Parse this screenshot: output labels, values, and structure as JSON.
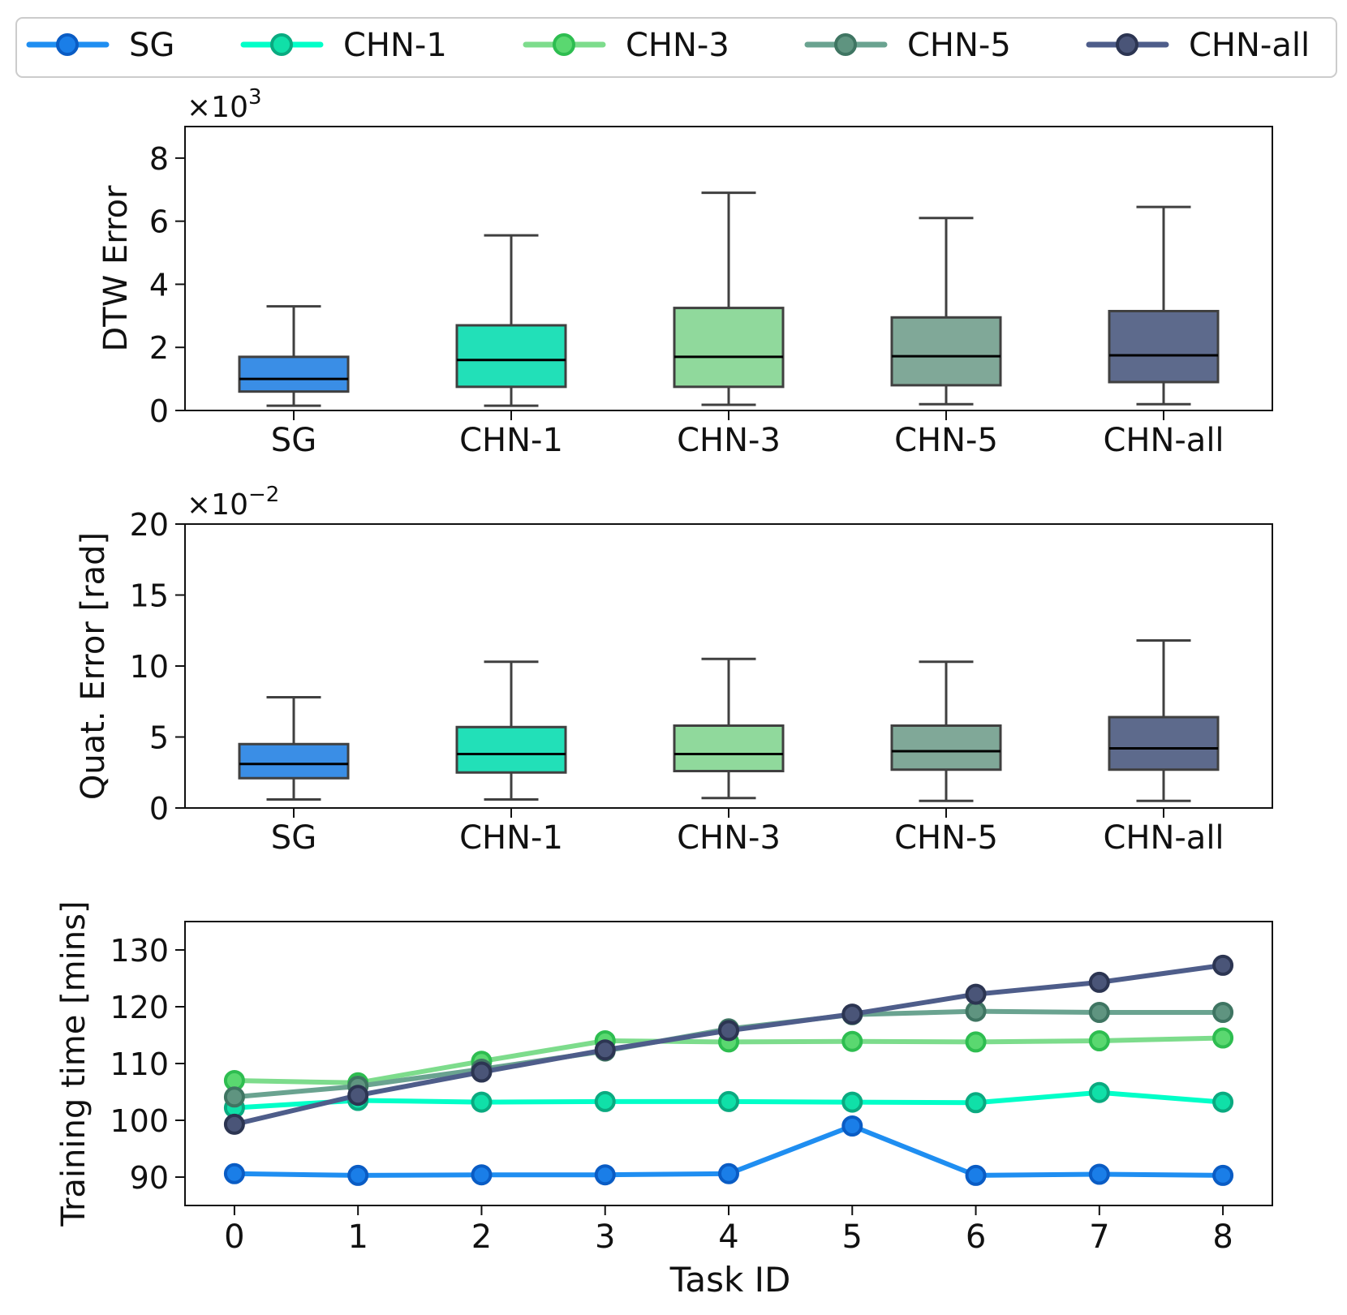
{
  "legend": {
    "entries": [
      {
        "label": "SG",
        "color": "#1f8ef1"
      },
      {
        "label": "CHN-1",
        "color": "#00ffc8"
      },
      {
        "label": "CHN-3",
        "color": "#7ddc8c"
      },
      {
        "label": "CHN-5",
        "color": "#6aa390"
      },
      {
        "label": "CHN-all",
        "color": "#4e5d8a"
      }
    ]
  },
  "chart_data": [
    {
      "type": "box",
      "ylabel": "DTW Error",
      "scale_label": "×10",
      "scale_exponent": "3",
      "ylim": [
        0,
        9
      ],
      "yticks": [
        0,
        2,
        4,
        6,
        8
      ],
      "yticklabels": [
        "0",
        "2",
        "4",
        "6",
        "8"
      ],
      "categories": [
        "SG",
        "CHN-1",
        "CHN-3",
        "CHN-5",
        "CHN-all"
      ],
      "box_colors": [
        "#3a8ee6",
        "#22e0b8",
        "#90d99c",
        "#80a898",
        "#5d6a8c"
      ],
      "boxes": [
        {
          "whisker_low": 0.15,
          "q1": 0.6,
          "median": 1.0,
          "q3": 1.7,
          "whisker_high": 3.3
        },
        {
          "whisker_low": 0.15,
          "q1": 0.75,
          "median": 1.6,
          "q3": 2.7,
          "whisker_high": 5.55
        },
        {
          "whisker_low": 0.18,
          "q1": 0.75,
          "median": 1.7,
          "q3": 3.25,
          "whisker_high": 6.9
        },
        {
          "whisker_low": 0.2,
          "q1": 0.8,
          "median": 1.72,
          "q3": 2.95,
          "whisker_high": 6.1
        },
        {
          "whisker_low": 0.2,
          "q1": 0.9,
          "median": 1.75,
          "q3": 3.15,
          "whisker_high": 6.45
        }
      ]
    },
    {
      "type": "box",
      "ylabel": "Quat. Error [rad]",
      "scale_label": "×10",
      "scale_exponent": "−2",
      "ylim": [
        0,
        20
      ],
      "yticks": [
        0,
        5,
        10,
        15,
        20
      ],
      "yticklabels": [
        "0",
        "5",
        "10",
        "15",
        "20"
      ],
      "categories": [
        "SG",
        "CHN-1",
        "CHN-3",
        "CHN-5",
        "CHN-all"
      ],
      "box_colors": [
        "#3a8ee6",
        "#22e0b8",
        "#90d99c",
        "#80a898",
        "#5d6a8c"
      ],
      "boxes": [
        {
          "whisker_low": 0.6,
          "q1": 2.1,
          "median": 3.1,
          "q3": 4.5,
          "whisker_high": 7.8
        },
        {
          "whisker_low": 0.6,
          "q1": 2.5,
          "median": 3.8,
          "q3": 5.7,
          "whisker_high": 10.3
        },
        {
          "whisker_low": 0.7,
          "q1": 2.6,
          "median": 3.8,
          "q3": 5.8,
          "whisker_high": 10.5
        },
        {
          "whisker_low": 0.5,
          "q1": 2.7,
          "median": 4.0,
          "q3": 5.8,
          "whisker_high": 10.3
        },
        {
          "whisker_low": 0.5,
          "q1": 2.7,
          "median": 4.2,
          "q3": 6.4,
          "whisker_high": 11.8
        }
      ]
    },
    {
      "type": "line",
      "xlabel": "Task ID",
      "ylabel": "Training time [mins]",
      "x": [
        0,
        1,
        2,
        3,
        4,
        5,
        6,
        7,
        8
      ],
      "xticklabels": [
        "0",
        "1",
        "2",
        "3",
        "4",
        "5",
        "6",
        "7",
        "8"
      ],
      "xlim": [
        -0.4,
        8.4
      ],
      "ylim": [
        85,
        135
      ],
      "yticks": [
        90,
        100,
        110,
        120,
        130
      ],
      "yticklabels": [
        "90",
        "100",
        "110",
        "120",
        "130"
      ],
      "series": [
        {
          "name": "SG",
          "line_color": "#1f8ef1",
          "marker_fill": "#1a7ee8",
          "marker_edge": "#0a5cc4",
          "values": [
            90.6,
            90.3,
            90.4,
            90.4,
            90.6,
            99.0,
            90.3,
            90.5,
            90.3
          ]
        },
        {
          "name": "CHN-1",
          "line_color": "#00ffc8",
          "marker_fill": "#10e0a8",
          "marker_edge": "#0aaa80",
          "values": [
            102.2,
            103.5,
            103.2,
            103.3,
            103.3,
            103.2,
            103.1,
            104.9,
            103.2
          ]
        },
        {
          "name": "CHN-3",
          "line_color": "#7ddc8c",
          "marker_fill": "#5ad870",
          "marker_edge": "#2ebd50",
          "values": [
            107.0,
            106.6,
            110.4,
            114.0,
            113.8,
            113.9,
            113.8,
            114.0,
            114.5
          ]
        },
        {
          "name": "CHN-5",
          "line_color": "#6aa390",
          "marker_fill": "#5f9480",
          "marker_edge": "#3f7562",
          "values": [
            104.1,
            106.0,
            109.0,
            112.2,
            116.1,
            118.6,
            119.2,
            119.0,
            119.0
          ]
        },
        {
          "name": "CHN-all",
          "line_color": "#4e5d8a",
          "marker_fill": "#4a5578",
          "marker_edge": "#2c3552",
          "values": [
            99.3,
            104.4,
            108.5,
            112.4,
            115.8,
            118.7,
            122.2,
            124.3,
            127.3
          ]
        }
      ]
    }
  ]
}
